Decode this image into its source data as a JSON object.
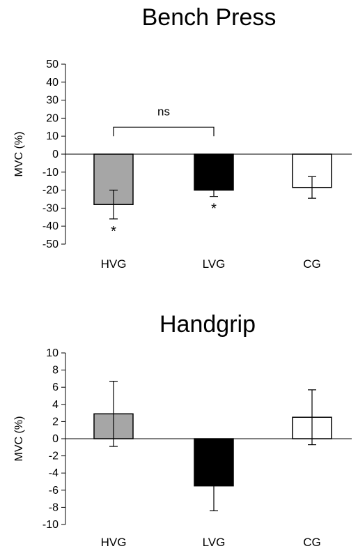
{
  "chart_data": [
    {
      "type": "bar",
      "title": "Bench Press",
      "ylabel": "MVC (%)",
      "xlabel": "",
      "categories": [
        "HVG",
        "LVG",
        "CG"
      ],
      "values": [
        -28,
        -20,
        -18.5
      ],
      "error": [
        8,
        3.5,
        6
      ],
      "ylim": [
        -50,
        50
      ],
      "yticks": [
        50,
        40,
        30,
        20,
        10,
        0,
        -10,
        -20,
        -30,
        -40,
        -50
      ],
      "bar_colors": [
        "#a6a6a6",
        "#000000",
        "#ffffff"
      ],
      "annotations": [
        {
          "text": "*",
          "category": "HVG"
        },
        {
          "text": "*",
          "category": "LVG"
        }
      ],
      "comparison": {
        "text": "ns",
        "from": "HVG",
        "to": "LVG"
      }
    },
    {
      "type": "bar",
      "title": "Handgrip",
      "ylabel": "MVC (%)",
      "xlabel": "",
      "categories": [
        "HVG",
        "LVG",
        "CG"
      ],
      "values": [
        2.9,
        -5.5,
        2.5
      ],
      "error": [
        3.8,
        2.9,
        3.2
      ],
      "ylim": [
        -10,
        10
      ],
      "yticks": [
        10,
        8,
        6,
        4,
        2,
        0,
        -2,
        -4,
        -6,
        -8,
        -10
      ],
      "bar_colors": [
        "#a6a6a6",
        "#000000",
        "#ffffff"
      ]
    }
  ]
}
